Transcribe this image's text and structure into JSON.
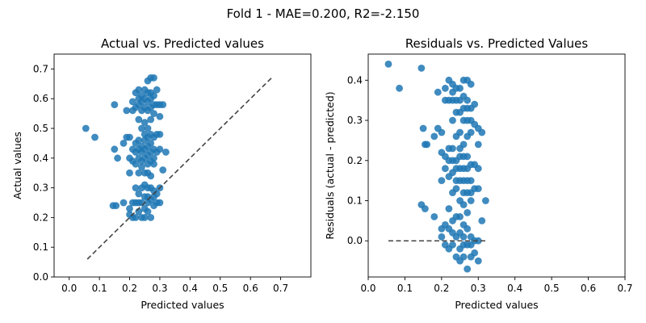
{
  "figure_title": "Fold 1 - MAE=0.200, R2=-2.150",
  "chart_data": [
    {
      "type": "scatter",
      "title": "Actual vs. Predicted values",
      "xlabel": "Predicted values",
      "ylabel": "Actual values",
      "xlim": [
        -0.05,
        0.8
      ],
      "ylim": [
        0.0,
        0.75
      ],
      "xticks": [
        "0.0",
        "0.1",
        "0.2",
        "0.3",
        "0.4",
        "0.5",
        "0.6",
        "0.7"
      ],
      "yticks": [
        "0.0",
        "0.1",
        "0.2",
        "0.3",
        "0.4",
        "0.5",
        "0.6",
        "0.7"
      ],
      "grid": false,
      "color": "#1f77b4",
      "reference_line": {
        "x": [
          0.06,
          0.67
        ],
        "y": [
          0.06,
          0.67
        ],
        "style": "dashed",
        "color": "#444444"
      },
      "points": [
        [
          0.055,
          0.5
        ],
        [
          0.085,
          0.47
        ],
        [
          0.145,
          0.24
        ],
        [
          0.155,
          0.24
        ],
        [
          0.15,
          0.58
        ],
        [
          0.15,
          0.43
        ],
        [
          0.16,
          0.4
        ],
        [
          0.18,
          0.45
        ],
        [
          0.18,
          0.25
        ],
        [
          0.19,
          0.56
        ],
        [
          0.19,
          0.47
        ],
        [
          0.2,
          0.47
        ],
        [
          0.2,
          0.4
        ],
        [
          0.2,
          0.35
        ],
        [
          0.2,
          0.23
        ],
        [
          0.2,
          0.21
        ],
        [
          0.21,
          0.59
        ],
        [
          0.21,
          0.56
        ],
        [
          0.21,
          0.43
        ],
        [
          0.21,
          0.39
        ],
        [
          0.21,
          0.25
        ],
        [
          0.21,
          0.2
        ],
        [
          0.22,
          0.62
        ],
        [
          0.22,
          0.57
        ],
        [
          0.22,
          0.45
        ],
        [
          0.22,
          0.42
        ],
        [
          0.22,
          0.38
        ],
        [
          0.22,
          0.3
        ],
        [
          0.22,
          0.25
        ],
        [
          0.22,
          0.2
        ],
        [
          0.23,
          0.63
        ],
        [
          0.23,
          0.6
        ],
        [
          0.23,
          0.58
        ],
        [
          0.23,
          0.53
        ],
        [
          0.23,
          0.46
        ],
        [
          0.23,
          0.43
        ],
        [
          0.23,
          0.4
        ],
        [
          0.23,
          0.35
        ],
        [
          0.23,
          0.28
        ],
        [
          0.23,
          0.25
        ],
        [
          0.23,
          0.22
        ],
        [
          0.24,
          0.61
        ],
        [
          0.24,
          0.59
        ],
        [
          0.24,
          0.56
        ],
        [
          0.24,
          0.5
        ],
        [
          0.24,
          0.44
        ],
        [
          0.24,
          0.42
        ],
        [
          0.24,
          0.39
        ],
        [
          0.24,
          0.37
        ],
        [
          0.24,
          0.3
        ],
        [
          0.24,
          0.25
        ],
        [
          0.24,
          0.2
        ],
        [
          0.25,
          0.63
        ],
        [
          0.25,
          0.6
        ],
        [
          0.25,
          0.57
        ],
        [
          0.25,
          0.52
        ],
        [
          0.25,
          0.48
        ],
        [
          0.25,
          0.46
        ],
        [
          0.25,
          0.43
        ],
        [
          0.25,
          0.4
        ],
        [
          0.25,
          0.35
        ],
        [
          0.25,
          0.31
        ],
        [
          0.25,
          0.27
        ],
        [
          0.25,
          0.23
        ],
        [
          0.25,
          0.2
        ],
        [
          0.26,
          0.66
        ],
        [
          0.26,
          0.62
        ],
        [
          0.26,
          0.59
        ],
        [
          0.26,
          0.56
        ],
        [
          0.26,
          0.5
        ],
        [
          0.26,
          0.47
        ],
        [
          0.26,
          0.44
        ],
        [
          0.26,
          0.41
        ],
        [
          0.26,
          0.38
        ],
        [
          0.26,
          0.35
        ],
        [
          0.26,
          0.3
        ],
        [
          0.26,
          0.27
        ],
        [
          0.26,
          0.25
        ],
        [
          0.26,
          0.22
        ],
        [
          0.27,
          0.67
        ],
        [
          0.27,
          0.62
        ],
        [
          0.27,
          0.6
        ],
        [
          0.27,
          0.57
        ],
        [
          0.27,
          0.53
        ],
        [
          0.27,
          0.48
        ],
        [
          0.27,
          0.45
        ],
        [
          0.27,
          0.42
        ],
        [
          0.27,
          0.39
        ],
        [
          0.27,
          0.34
        ],
        [
          0.27,
          0.3
        ],
        [
          0.27,
          0.26
        ],
        [
          0.27,
          0.2
        ],
        [
          0.28,
          0.67
        ],
        [
          0.28,
          0.61
        ],
        [
          0.28,
          0.58
        ],
        [
          0.28,
          0.55
        ],
        [
          0.28,
          0.47
        ],
        [
          0.28,
          0.43
        ],
        [
          0.28,
          0.4
        ],
        [
          0.28,
          0.38
        ],
        [
          0.28,
          0.29
        ],
        [
          0.28,
          0.27
        ],
        [
          0.28,
          0.24
        ],
        [
          0.29,
          0.63
        ],
        [
          0.29,
          0.58
        ],
        [
          0.29,
          0.48
        ],
        [
          0.29,
          0.42
        ],
        [
          0.29,
          0.28
        ],
        [
          0.29,
          0.25
        ],
        [
          0.3,
          0.58
        ],
        [
          0.3,
          0.54
        ],
        [
          0.3,
          0.48
        ],
        [
          0.3,
          0.43
        ],
        [
          0.3,
          0.3
        ],
        [
          0.3,
          0.25
        ],
        [
          0.31,
          0.58
        ],
        [
          0.31,
          0.36
        ],
        [
          0.32,
          0.42
        ]
      ]
    },
    {
      "type": "scatter",
      "title": "Residuals vs. Predicted Values",
      "xlabel": "Predicted values",
      "ylabel": "Residuals (actual - predicted)",
      "xlim": [
        0.0,
        0.7
      ],
      "ylim": [
        -0.09,
        0.465
      ],
      "xticks": [
        "0.0",
        "0.1",
        "0.2",
        "0.3",
        "0.4",
        "0.5",
        "0.6",
        "0.7"
      ],
      "yticks": [
        "0.0",
        "0.1",
        "0.2",
        "0.3",
        "0.4"
      ],
      "grid": false,
      "color": "#1f77b4",
      "reference_line": {
        "x": [
          0.055,
          0.32
        ],
        "y": [
          0.0,
          0.0
        ],
        "style": "dashed",
        "color": "#444444"
      },
      "points": [
        [
          0.055,
          0.44
        ],
        [
          0.085,
          0.38
        ],
        [
          0.145,
          0.43
        ],
        [
          0.145,
          0.09
        ],
        [
          0.155,
          0.08
        ],
        [
          0.15,
          0.28
        ],
        [
          0.155,
          0.24
        ],
        [
          0.16,
          0.24
        ],
        [
          0.18,
          0.26
        ],
        [
          0.18,
          0.06
        ],
        [
          0.19,
          0.37
        ],
        [
          0.19,
          0.28
        ],
        [
          0.2,
          0.27
        ],
        [
          0.2,
          0.22
        ],
        [
          0.2,
          0.15
        ],
        [
          0.2,
          0.03
        ],
        [
          0.2,
          0.01
        ],
        [
          0.21,
          0.38
        ],
        [
          0.21,
          0.35
        ],
        [
          0.21,
          0.21
        ],
        [
          0.21,
          0.18
        ],
        [
          0.21,
          0.04
        ],
        [
          0.21,
          -0.01
        ],
        [
          0.22,
          0.4
        ],
        [
          0.22,
          0.35
        ],
        [
          0.22,
          0.23
        ],
        [
          0.22,
          0.2
        ],
        [
          0.22,
          0.16
        ],
        [
          0.22,
          0.08
        ],
        [
          0.22,
          0.03
        ],
        [
          0.22,
          -0.02
        ],
        [
          0.23,
          0.39
        ],
        [
          0.23,
          0.37
        ],
        [
          0.23,
          0.35
        ],
        [
          0.23,
          0.3
        ],
        [
          0.23,
          0.23
        ],
        [
          0.23,
          0.2
        ],
        [
          0.23,
          0.17
        ],
        [
          0.23,
          0.12
        ],
        [
          0.23,
          0.05
        ],
        [
          0.23,
          0.02
        ],
        [
          0.23,
          -0.01
        ],
        [
          0.24,
          0.38
        ],
        [
          0.24,
          0.35
        ],
        [
          0.24,
          0.32
        ],
        [
          0.24,
          0.26
        ],
        [
          0.24,
          0.2
        ],
        [
          0.24,
          0.18
        ],
        [
          0.24,
          0.15
        ],
        [
          0.24,
          0.13
        ],
        [
          0.24,
          0.06
        ],
        [
          0.24,
          0.01
        ],
        [
          0.24,
          -0.04
        ],
        [
          0.25,
          0.38
        ],
        [
          0.25,
          0.35
        ],
        [
          0.25,
          0.32
        ],
        [
          0.25,
          0.27
        ],
        [
          0.25,
          0.23
        ],
        [
          0.25,
          0.21
        ],
        [
          0.25,
          0.18
        ],
        [
          0.25,
          0.15
        ],
        [
          0.25,
          0.1
        ],
        [
          0.25,
          0.06
        ],
        [
          0.25,
          0.02
        ],
        [
          0.25,
          -0.02
        ],
        [
          0.25,
          -0.05
        ],
        [
          0.26,
          0.4
        ],
        [
          0.26,
          0.36
        ],
        [
          0.26,
          0.33
        ],
        [
          0.26,
          0.3
        ],
        [
          0.26,
          0.24
        ],
        [
          0.26,
          0.21
        ],
        [
          0.26,
          0.18
        ],
        [
          0.26,
          0.15
        ],
        [
          0.26,
          0.12
        ],
        [
          0.26,
          0.09
        ],
        [
          0.26,
          0.04
        ],
        [
          0.26,
          0.01
        ],
        [
          0.26,
          -0.01
        ],
        [
          0.26,
          -0.04
        ],
        [
          0.27,
          0.4
        ],
        [
          0.27,
          0.35
        ],
        [
          0.27,
          0.33
        ],
        [
          0.27,
          0.3
        ],
        [
          0.27,
          0.26
        ],
        [
          0.27,
          0.21
        ],
        [
          0.27,
          0.18
        ],
        [
          0.27,
          0.15
        ],
        [
          0.27,
          0.12
        ],
        [
          0.27,
          0.07
        ],
        [
          0.27,
          0.03
        ],
        [
          0.27,
          -0.01
        ],
        [
          0.27,
          -0.07
        ],
        [
          0.28,
          0.39
        ],
        [
          0.28,
          0.33
        ],
        [
          0.28,
          0.3
        ],
        [
          0.28,
          0.27
        ],
        [
          0.28,
          0.19
        ],
        [
          0.28,
          0.15
        ],
        [
          0.28,
          0.12
        ],
        [
          0.28,
          0.1
        ],
        [
          0.28,
          0.01
        ],
        [
          0.28,
          -0.01
        ],
        [
          0.28,
          -0.04
        ],
        [
          0.29,
          0.34
        ],
        [
          0.29,
          0.29
        ],
        [
          0.29,
          0.19
        ],
        [
          0.29,
          0.13
        ],
        [
          0.29,
          0.0
        ],
        [
          0.29,
          -0.03
        ],
        [
          0.3,
          0.28
        ],
        [
          0.3,
          0.24
        ],
        [
          0.3,
          0.18
        ],
        [
          0.3,
          0.13
        ],
        [
          0.3,
          0.0
        ],
        [
          0.3,
          -0.05
        ],
        [
          0.31,
          0.27
        ],
        [
          0.31,
          0.05
        ],
        [
          0.32,
          0.1
        ]
      ]
    }
  ]
}
